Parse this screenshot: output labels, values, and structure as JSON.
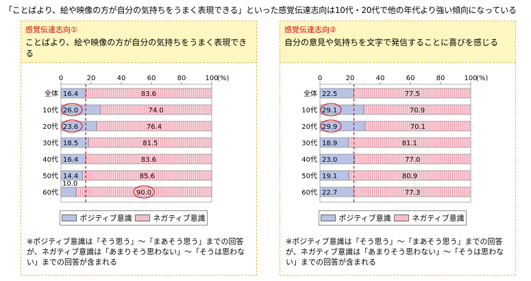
{
  "headline": "「ことばより、絵や映像の方が自分の気持ちをうまく表現できる」といった感覚伝達志向は10代・20代で他の年代より強い傾向になっている",
  "chart_data": [
    {
      "type": "bar",
      "title": "感覚伝達志向①",
      "description": "ことばより、絵や映像の方が自分の気持ちをうまく表現できる",
      "categories": [
        "全体",
        "10代",
        "20代",
        "30代",
        "40代",
        "50代",
        "60代"
      ],
      "series": [
        {
          "name": "ポジティブ意識",
          "values": [
            16.4,
            26.0,
            23.6,
            18.5,
            16.4,
            14.4,
            10.0
          ]
        },
        {
          "name": "ネガティブ意識",
          "values": [
            83.6,
            74.0,
            76.4,
            81.5,
            83.6,
            85.6,
            90.0
          ]
        }
      ],
      "xlim": [
        0,
        100
      ],
      "xticks": [
        "0",
        "20",
        "40",
        "60",
        "80",
        "100"
      ],
      "unit": "(%)",
      "reference_line": 16.4,
      "circled": [
        "26.0",
        "23.6",
        "90.0"
      ],
      "stacked": true,
      "orientation": "horizontal",
      "legend": "bottom",
      "note": "※ポジティブ意識は「そう思う」〜「まあそう思う」までの回答が、ネガティブ意識は「あまりそう思わない」〜「そうは思わない」までの回答が含まれる"
    },
    {
      "type": "bar",
      "title": "感覚伝達志向②",
      "description": "自分の意見や気持ちを文字で発信することに喜びを感じる",
      "categories": [
        "全体",
        "10代",
        "20代",
        "30代",
        "40代",
        "50代",
        "60代"
      ],
      "series": [
        {
          "name": "ポジティブ意識",
          "values": [
            22.5,
            29.1,
            29.9,
            18.9,
            23.0,
            19.1,
            22.7
          ]
        },
        {
          "name": "ネガティブ意識",
          "values": [
            77.5,
            70.9,
            70.1,
            81.1,
            77.0,
            80.9,
            77.3
          ]
        }
      ],
      "xlim": [
        0,
        100
      ],
      "xticks": [
        "0",
        "20",
        "40",
        "60",
        "80",
        "100"
      ],
      "unit": "(%)",
      "reference_line": 22.5,
      "circled": [
        "29.1",
        "29.9"
      ],
      "stacked": true,
      "orientation": "horizontal",
      "legend": "bottom",
      "note": "※ポジティブ意識は「そう思う」〜「まあそう思う」までの回答が、ネガティブ意識は「あまりそう思わない」〜「そうは思わない」までの回答が含まれる"
    }
  ],
  "colors": {
    "positive": "#b8c3e6",
    "negative": "#f4b8c4",
    "reference": "#e00000",
    "circle": "#e00000",
    "panel_border": "#e8b84a",
    "header_bg": "#fff7c2"
  }
}
